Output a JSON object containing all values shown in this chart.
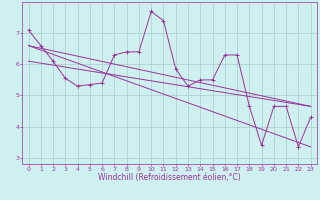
{
  "title": "",
  "xlabel": "Windchill (Refroidissement éolien,°C)",
  "ylabel": "",
  "bg_color": "#cff0f0",
  "plot_bg_color": "#cff0f0",
  "grid_color": "#aacccc",
  "line_color": "#993399",
  "marker": "+",
  "x_hours": [
    0,
    1,
    2,
    3,
    4,
    5,
    6,
    7,
    8,
    9,
    10,
    11,
    12,
    13,
    14,
    15,
    16,
    17,
    18,
    19,
    20,
    21,
    22,
    23
  ],
  "main_line": [
    7.1,
    6.6,
    6.1,
    5.55,
    5.3,
    5.35,
    5.4,
    6.3,
    6.4,
    6.4,
    7.7,
    7.4,
    5.85,
    5.3,
    5.5,
    5.5,
    6.3,
    6.3,
    4.65,
    3.4,
    4.65,
    4.65,
    3.35,
    4.3
  ],
  "trend1_x": [
    0,
    23
  ],
  "trend1_y": [
    6.6,
    4.65
  ],
  "trend2_x": [
    0,
    23
  ],
  "trend2_y": [
    6.1,
    4.65
  ],
  "trend3_x": [
    0,
    23
  ],
  "trend3_y": [
    6.6,
    3.35
  ],
  "ylim": [
    2.8,
    8.0
  ],
  "xlim": [
    -0.5,
    23.5
  ],
  "yticks": [
    3,
    4,
    5,
    6,
    7
  ],
  "xticks": [
    0,
    1,
    2,
    3,
    4,
    5,
    6,
    7,
    8,
    9,
    10,
    11,
    12,
    13,
    14,
    15,
    16,
    17,
    18,
    19,
    20,
    21,
    22,
    23
  ],
  "tick_fontsize": 4.5,
  "xlabel_fontsize": 5.5,
  "lw": 0.7,
  "markersize": 2.5,
  "markeredgewidth": 0.7
}
